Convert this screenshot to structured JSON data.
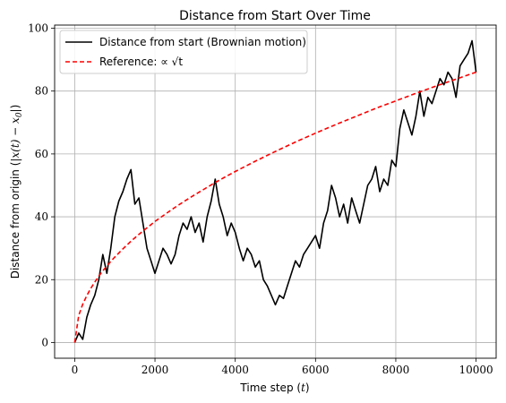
{
  "chart_data": {
    "type": "line",
    "title": "Distance from Start Over Time",
    "xlabel_text": "Time step (",
    "xlabel_math": "t",
    "xlabel_close": ")",
    "ylabel_text": "Distance from origin (",
    "ylabel_math": "|x(t) − x",
    "ylabel_sub": "0",
    "ylabel_close": "|)",
    "xlim": [
      -500,
      10500
    ],
    "ylim": [
      -5,
      101
    ],
    "grid": true,
    "legend_position": "upper-left",
    "x_ticks": [
      0,
      2000,
      4000,
      6000,
      8000,
      10000
    ],
    "x_tick_labels": [
      "0",
      "2000",
      "4000",
      "6000",
      "8000",
      "10000"
    ],
    "y_ticks": [
      0,
      20,
      40,
      60,
      80,
      100
    ],
    "y_tick_labels": [
      "0",
      "20",
      "40",
      "60",
      "80",
      "100"
    ],
    "series": [
      {
        "name": "Distance from start (Brownian motion)",
        "color": "#000000",
        "style": "solid",
        "x": [
          0,
          100,
          200,
          300,
          400,
          500,
          600,
          700,
          800,
          900,
          1000,
          1100,
          1200,
          1300,
          1400,
          1500,
          1600,
          1700,
          1800,
          1900,
          2000,
          2100,
          2200,
          2300,
          2400,
          2500,
          2600,
          2700,
          2800,
          2900,
          3000,
          3100,
          3200,
          3300,
          3400,
          3500,
          3600,
          3700,
          3800,
          3900,
          4000,
          4100,
          4200,
          4300,
          4400,
          4500,
          4600,
          4700,
          4800,
          4900,
          5000,
          5100,
          5200,
          5300,
          5400,
          5500,
          5600,
          5700,
          5800,
          5900,
          6000,
          6100,
          6200,
          6300,
          6400,
          6500,
          6600,
          6700,
          6800,
          6900,
          7000,
          7100,
          7200,
          7300,
          7400,
          7500,
          7600,
          7700,
          7800,
          7900,
          8000,
          8100,
          8200,
          8300,
          8400,
          8500,
          8600,
          8700,
          8800,
          8900,
          9000,
          9100,
          9200,
          9300,
          9400,
          9500,
          9600,
          9700,
          9800,
          9900,
          10000
        ],
        "values": [
          0,
          3,
          1,
          8,
          12,
          15,
          20,
          28,
          22,
          30,
          40,
          45,
          48,
          52,
          55,
          44,
          46,
          38,
          30,
          26,
          22,
          26,
          30,
          28,
          25,
          28,
          34,
          38,
          36,
          40,
          35,
          38,
          32,
          40,
          45,
          52,
          44,
          40,
          34,
          38,
          35,
          30,
          26,
          30,
          28,
          24,
          26,
          20,
          18,
          15,
          12,
          15,
          14,
          18,
          22,
          26,
          24,
          28,
          30,
          32,
          34,
          30,
          38,
          42,
          50,
          46,
          40,
          44,
          38,
          46,
          42,
          38,
          44,
          50,
          52,
          56,
          48,
          52,
          50,
          58,
          56,
          68,
          74,
          70,
          66,
          72,
          80,
          72,
          78,
          76,
          80,
          84,
          82,
          86,
          84,
          78,
          88,
          90,
          92,
          96,
          86
        ]
      },
      {
        "name": "Reference: ∝ √t",
        "color": "#ff0000",
        "style": "dashed",
        "x": [
          0,
          100,
          200,
          300,
          400,
          500,
          600,
          700,
          800,
          900,
          1000,
          1200,
          1400,
          1600,
          1800,
          2000,
          2250,
          2500,
          2750,
          3000,
          3250,
          3500,
          3750,
          4000,
          4500,
          5000,
          5500,
          6000,
          6500,
          7000,
          7500,
          8000,
          8500,
          9000,
          9500,
          10000
        ],
        "values": [
          0,
          8.6,
          12.2,
          14.9,
          17.2,
          19.2,
          21.1,
          22.8,
          24.3,
          25.8,
          27.2,
          29.8,
          32.2,
          34.4,
          36.5,
          38.5,
          40.8,
          43.0,
          45.1,
          47.1,
          49.0,
          50.9,
          52.7,
          54.4,
          57.7,
          60.8,
          63.8,
          66.6,
          69.3,
          71.9,
          74.5,
          76.9,
          79.3,
          81.6,
          83.8,
          86.0
        ]
      }
    ]
  }
}
